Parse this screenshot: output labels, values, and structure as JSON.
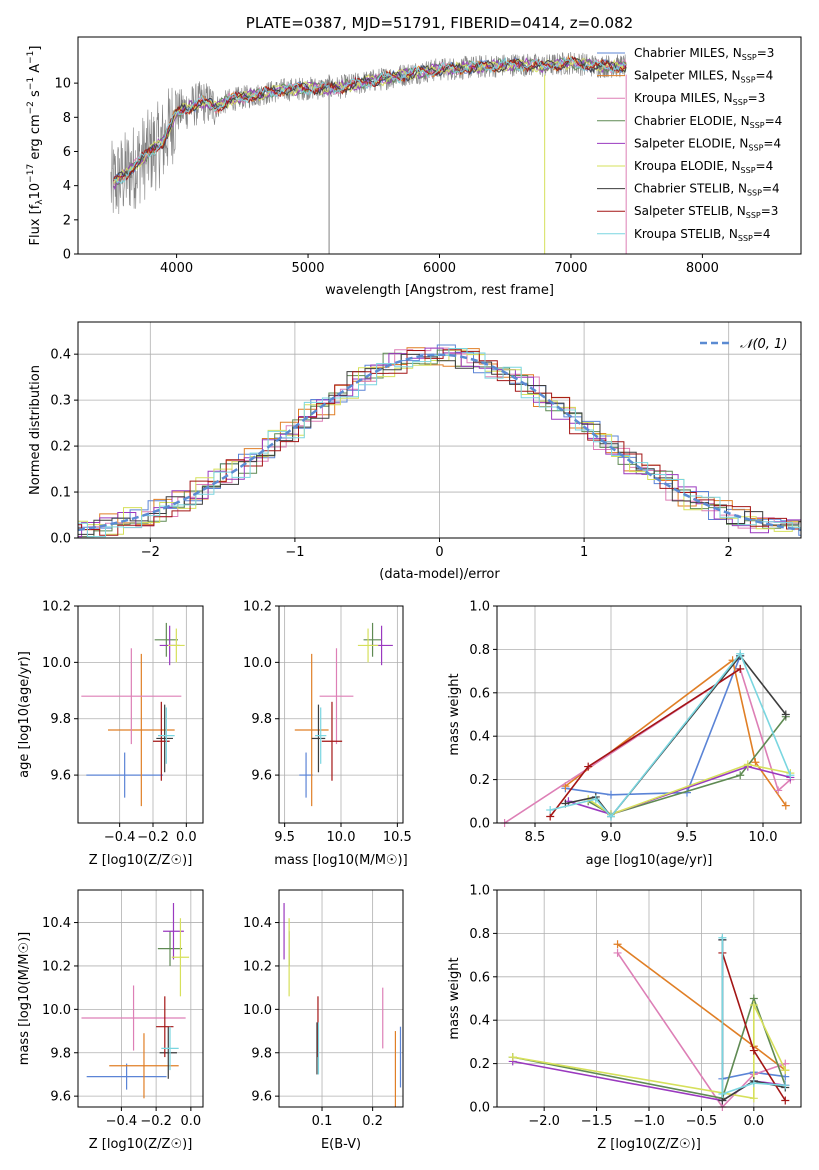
{
  "colors": {
    "model_series": [
      "#5b84d6",
      "#e07f26",
      "#dd7fb6",
      "#5f8a53",
      "#9a39bf",
      "#d6e05b",
      "#3d3d3d",
      "#a31515",
      "#7ad6e0"
    ],
    "spectrum": "#808080",
    "normal_curve": "#5b8bd2",
    "grid": "#b0b0b0"
  },
  "chart_data": [
    {
      "id": "spectrum",
      "type": "line",
      "title": "PLATE=0387, MJD=51791, FIBERID=0414, z=0.082",
      "xlabel": "wavelength [Angstrom, rest frame]",
      "ylabel": "Flux [f_λ 10^-17 erg cm^-2 s^-1 A^-1]",
      "xlim": [
        3250,
        8750
      ],
      "ylim": [
        0,
        12.7
      ],
      "xticks": [
        4000,
        5000,
        6000,
        7000,
        8000
      ],
      "yticks": [
        0,
        2,
        4,
        6,
        8,
        10
      ],
      "grid": false,
      "legend_position": "upper-right",
      "legend": [
        "Chabrier MILES, N_SSP=3",
        "Salpeter MILES, N_SSP=4",
        "Kroupa MILES, N_SSP=3",
        "Chabrier ELODIE, N_SSP=4",
        "Salpeter ELODIE, N_SSP=4",
        "Kroupa ELODIE, N_SSP=4",
        "Chabrier STELIB, N_SSP=4",
        "Salpeter STELIB, N_SSP=3",
        "Kroupa STELIB, N_SSP=4"
      ],
      "continuum": {
        "x": [
          3500,
          3600,
          3700,
          3800,
          3900,
          4000,
          4100,
          4200,
          4300,
          4400,
          4600,
          4800,
          5000,
          5200,
          5400,
          5600,
          5800,
          6000,
          6200,
          6400,
          6600,
          6800,
          7000,
          7200,
          7400
        ],
        "y": [
          4.0,
          4.6,
          5.3,
          6.0,
          6.6,
          8.3,
          8.6,
          8.9,
          8.6,
          9.0,
          9.3,
          9.6,
          9.7,
          9.7,
          10.0,
          10.3,
          10.6,
          10.8,
          10.9,
          11.0,
          11.1,
          11.0,
          11.2,
          11.0,
          11.0
        ]
      }
    },
    {
      "id": "residuals",
      "type": "line",
      "title": "",
      "xlabel": "(data-model)/error",
      "ylabel": "Normed distribution",
      "xlim": [
        -2.5,
        2.5
      ],
      "ylim": [
        0,
        0.47
      ],
      "xticks": [
        -2,
        -1,
        0,
        1,
        2
      ],
      "yticks": [
        0.0,
        0.1,
        0.2,
        0.3,
        0.4
      ],
      "grid": true,
      "legend_position": "upper-right",
      "legend": [
        "𝒩(0, 1)"
      ],
      "normal": {
        "mu": 0,
        "sigma": 1
      }
    },
    {
      "id": "z-age",
      "type": "scatter",
      "xlabel": "Z [log10(Z/Z☉)]",
      "ylabel": "age  [log10(age/yr)]",
      "xlim": [
        -0.65,
        0.1
      ],
      "ylim": [
        9.43,
        10.2
      ],
      "xticks": [
        -0.4,
        -0.2,
        0.0
      ],
      "yticks": [
        9.6,
        9.8,
        10.0,
        10.2
      ],
      "grid": true,
      "points": [
        {
          "x": -0.37,
          "y": 9.6,
          "xerr": 0.23,
          "yerr": 0.08
        },
        {
          "x": -0.27,
          "y": 9.76,
          "xerr": 0.2,
          "yerr": 0.27
        },
        {
          "x": -0.33,
          "y": 9.88,
          "xerr": 0.3,
          "yerr": 0.17
        },
        {
          "x": -0.12,
          "y": 10.08,
          "xerr": 0.07,
          "yerr": 0.06
        },
        {
          "x": -0.1,
          "y": 10.06,
          "xerr": 0.06,
          "yerr": 0.07
        },
        {
          "x": -0.06,
          "y": 10.06,
          "xerr": 0.05,
          "yerr": 0.06
        },
        {
          "x": -0.13,
          "y": 9.73,
          "xerr": 0.05,
          "yerr": 0.12
        },
        {
          "x": -0.15,
          "y": 9.72,
          "xerr": 0.05,
          "yerr": 0.14
        },
        {
          "x": -0.12,
          "y": 9.74,
          "xerr": 0.05,
          "yerr": 0.1
        }
      ]
    },
    {
      "id": "mass-age",
      "type": "scatter",
      "xlabel": "mass [log10(M/M☉)]",
      "ylabel": "",
      "xlim": [
        9.45,
        10.55
      ],
      "ylim": [
        9.43,
        10.2
      ],
      "xticks": [
        9.5,
        10.0,
        10.5
      ],
      "yticks": [
        9.6,
        9.8,
        10.0,
        10.2
      ],
      "grid": true,
      "points": [
        {
          "x": 9.69,
          "y": 9.6,
          "xerr": 0.06,
          "yerr": 0.08
        },
        {
          "x": 9.74,
          "y": 9.76,
          "xerr": 0.15,
          "yerr": 0.27
        },
        {
          "x": 9.96,
          "y": 9.88,
          "xerr": 0.15,
          "yerr": 0.17
        },
        {
          "x": 10.28,
          "y": 10.08,
          "xerr": 0.08,
          "yerr": 0.06
        },
        {
          "x": 10.36,
          "y": 10.06,
          "xerr": 0.1,
          "yerr": 0.07
        },
        {
          "x": 10.24,
          "y": 10.06,
          "xerr": 0.09,
          "yerr": 0.06
        },
        {
          "x": 9.8,
          "y": 9.73,
          "xerr": 0.06,
          "yerr": 0.12
        },
        {
          "x": 9.92,
          "y": 9.72,
          "xerr": 0.09,
          "yerr": 0.14
        },
        {
          "x": 9.82,
          "y": 9.74,
          "xerr": 0.05,
          "yerr": 0.1
        }
      ]
    },
    {
      "id": "age-weight",
      "type": "line",
      "xlabel": "age  [log10(age/yr)]",
      "ylabel": "mass weight",
      "xlim": [
        8.25,
        10.25
      ],
      "ylim": [
        0,
        1.0
      ],
      "xticks": [
        8.5,
        9.0,
        9.5,
        10.0
      ],
      "yticks": [
        0.0,
        0.2,
        0.4,
        0.6,
        0.8,
        1.0
      ],
      "grid": true,
      "series": [
        {
          "x": [
            8.7,
            9.0,
            9.5,
            9.85
          ],
          "y": [
            0.16,
            0.13,
            0.14,
            0.77
          ]
        },
        {
          "x": [
            8.7,
            9.8,
            9.95,
            10.15
          ],
          "y": [
            0.17,
            0.75,
            0.28,
            0.08
          ]
        },
        {
          "x": [
            8.3,
            9.85,
            10.1,
            10.18
          ],
          "y": [
            0.0,
            0.71,
            0.15,
            0.2
          ]
        },
        {
          "x": [
            8.85,
            9.0,
            9.85,
            10.15
          ],
          "y": [
            0.1,
            0.04,
            0.22,
            0.49
          ]
        },
        {
          "x": [
            8.72,
            9.0,
            9.9,
            10.18
          ],
          "y": [
            0.1,
            0.04,
            0.26,
            0.21
          ]
        },
        {
          "x": [
            8.85,
            9.0,
            9.9,
            10.18
          ],
          "y": [
            0.11,
            0.04,
            0.27,
            0.23
          ]
        },
        {
          "x": [
            8.7,
            8.9,
            9.0,
            9.85,
            10.15
          ],
          "y": [
            0.09,
            0.12,
            0.03,
            0.77,
            0.5
          ]
        },
        {
          "x": [
            8.6,
            8.85,
            9.85
          ],
          "y": [
            0.03,
            0.26,
            0.71
          ]
        },
        {
          "x": [
            8.6,
            8.9,
            9.0,
            9.85,
            10.18
          ],
          "y": [
            0.06,
            0.11,
            0.03,
            0.78,
            0.22
          ]
        }
      ]
    },
    {
      "id": "z-mass",
      "type": "scatter",
      "xlabel": "Z [log10(Z/Z☉)]",
      "ylabel": "mass [log10(M/M☉)]",
      "xlim": [
        -0.65,
        0.07
      ],
      "ylim": [
        9.55,
        10.55
      ],
      "xticks": [
        -0.4,
        -0.2,
        0.0
      ],
      "yticks": [
        9.6,
        9.8,
        10.0,
        10.2,
        10.4
      ],
      "grid": true,
      "points": [
        {
          "x": -0.37,
          "y": 9.69,
          "xerr": 0.23,
          "yerr": 0.06
        },
        {
          "x": -0.27,
          "y": 9.74,
          "xerr": 0.2,
          "yerr": 0.15
        },
        {
          "x": -0.33,
          "y": 9.96,
          "xerr": 0.3,
          "yerr": 0.15
        },
        {
          "x": -0.12,
          "y": 10.28,
          "xerr": 0.07,
          "yerr": 0.08
        },
        {
          "x": -0.1,
          "y": 10.36,
          "xerr": 0.06,
          "yerr": 0.13
        },
        {
          "x": -0.06,
          "y": 10.24,
          "xerr": 0.05,
          "yerr": 0.18
        },
        {
          "x": -0.13,
          "y": 9.8,
          "xerr": 0.05,
          "yerr": 0.12
        },
        {
          "x": -0.15,
          "y": 9.92,
          "xerr": 0.05,
          "yerr": 0.14
        },
        {
          "x": -0.12,
          "y": 9.82,
          "xerr": 0.05,
          "yerr": 0.1
        }
      ]
    },
    {
      "id": "ebv-mass",
      "type": "scatter",
      "xlabel": "E(B-V)",
      "ylabel": "",
      "xlim": [
        0.015,
        0.26
      ],
      "ylim": [
        9.55,
        10.55
      ],
      "xticks": [
        0.1,
        0.2
      ],
      "yticks": [
        9.6,
        9.8,
        10.0,
        10.2,
        10.4
      ],
      "grid": true,
      "points": [
        {
          "x": 0.255,
          "y": 9.78,
          "xerr": 0,
          "yerr": 0.14
        },
        {
          "x": 0.245,
          "y": 9.7,
          "xerr": 0,
          "yerr": 0.2
        },
        {
          "x": 0.22,
          "y": 9.96,
          "xerr": 0,
          "yerr": 0.14
        },
        {
          "x": 0.035,
          "y": 10.28,
          "xerr": 0,
          "yerr": 0.08
        },
        {
          "x": 0.025,
          "y": 10.36,
          "xerr": 0,
          "yerr": 0.13
        },
        {
          "x": 0.035,
          "y": 10.24,
          "xerr": 0,
          "yerr": 0.18
        },
        {
          "x": 0.09,
          "y": 9.82,
          "xerr": 0,
          "yerr": 0.12
        },
        {
          "x": 0.092,
          "y": 9.92,
          "xerr": 0,
          "yerr": 0.14
        },
        {
          "x": 0.093,
          "y": 9.82,
          "xerr": 0,
          "yerr": 0.12
        }
      ]
    },
    {
      "id": "z-weight",
      "type": "line",
      "xlabel": "Z [log10(Z/Z☉)]",
      "ylabel": "mass weight",
      "xlim": [
        -2.45,
        0.45
      ],
      "ylim": [
        0,
        1.0
      ],
      "xticks": [
        -2.0,
        -1.5,
        -1.0,
        -0.5,
        0.0
      ],
      "yticks": [
        0.0,
        0.2,
        0.4,
        0.6,
        0.8,
        1.0
      ],
      "grid": true,
      "series": [
        {
          "x": [
            -0.3,
            -0.3,
            0.0,
            0.3
          ],
          "y": [
            0.77,
            0.13,
            0.16,
            0.14
          ]
        },
        {
          "x": [
            -1.3,
            0.0,
            0.3
          ],
          "y": [
            0.75,
            0.28,
            0.17
          ]
        },
        {
          "x": [
            -1.3,
            -0.3,
            0.0,
            0.3
          ],
          "y": [
            0.71,
            0.0,
            0.15,
            0.2
          ]
        },
        {
          "x": [
            -2.3,
            -0.3,
            0.0,
            0.3
          ],
          "y": [
            0.23,
            0.04,
            0.5,
            0.1
          ]
        },
        {
          "x": [
            -2.3,
            -0.3,
            0.0,
            0.3
          ],
          "y": [
            0.21,
            0.03,
            0.12,
            0.1
          ]
        },
        {
          "x": [
            -2.3,
            0.0,
            0.0,
            0.3
          ],
          "y": [
            0.23,
            0.04,
            0.47,
            0.17
          ]
        },
        {
          "x": [
            -0.3,
            -0.3,
            0.0,
            0.3
          ],
          "y": [
            0.77,
            0.03,
            0.12,
            0.09
          ]
        },
        {
          "x": [
            -0.3,
            0.0,
            0.3
          ],
          "y": [
            0.71,
            0.26,
            0.03
          ]
        },
        {
          "x": [
            -0.3,
            -0.3,
            0.0,
            0.3
          ],
          "y": [
            0.78,
            0.06,
            0.11,
            0.1
          ]
        }
      ]
    }
  ]
}
